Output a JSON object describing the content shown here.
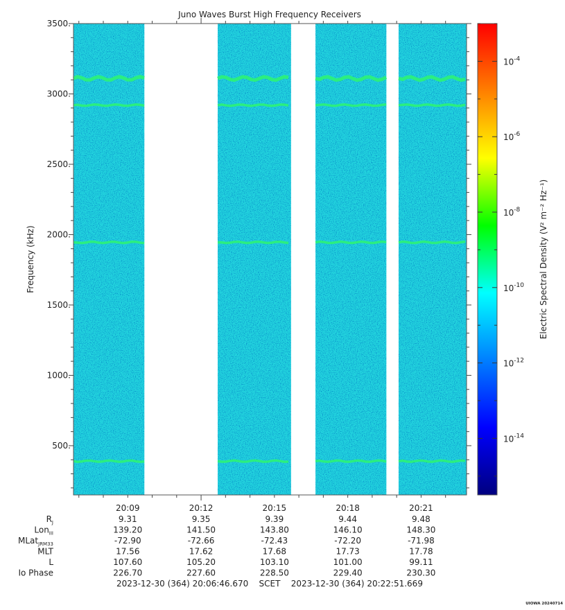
{
  "chart_data": {
    "type": "heatmap",
    "title": "Juno Waves Burst High Frequency Receivers",
    "ylabel": "Frequency (kHz)",
    "ylim": [
      150,
      3500
    ],
    "y_ticks": [
      {
        "value": 500,
        "label": "500."
      },
      {
        "value": 1000,
        "label": "1000."
      },
      {
        "value": 1500,
        "label": "1500."
      },
      {
        "value": 2000,
        "label": "2000."
      },
      {
        "value": 2500,
        "label": "2500."
      },
      {
        "value": 3000,
        "label": "3000."
      },
      {
        "value": 3500,
        "label": "3500."
      }
    ],
    "x_range_minutes": [
      0,
      16.08
    ],
    "x_ticks": [
      {
        "minutes": 2.22,
        "label": "20:09"
      },
      {
        "minutes": 5.22,
        "label": "20:12"
      },
      {
        "minutes": 8.22,
        "label": "20:15"
      },
      {
        "minutes": 11.22,
        "label": "20:18"
      },
      {
        "minutes": 14.22,
        "label": "20:21"
      }
    ],
    "data_segments_minutes": [
      [
        0,
        2.9
      ],
      [
        5.9,
        8.9
      ],
      [
        9.9,
        12.8
      ],
      [
        13.3,
        16.08
      ]
    ],
    "emission_lines_khz": [
      3110,
      2920,
      1945,
      390
    ],
    "colorbar": {
      "label": "Electric Spectral Density (V² m⁻² Hz⁻¹)",
      "log_min": -15.5,
      "log_max": -3,
      "ticks": [
        {
          "exp": -4,
          "base": "10",
          "sup": "-4"
        },
        {
          "exp": -6,
          "base": "10",
          "sup": "-6"
        },
        {
          "exp": -8,
          "base": "10",
          "sup": "-8"
        },
        {
          "exp": -10,
          "base": "10",
          "sup": "-10"
        },
        {
          "exp": -12,
          "base": "10",
          "sup": "-12"
        },
        {
          "exp": -14,
          "base": "10",
          "sup": "-14"
        }
      ],
      "colors": [
        "#00007f",
        "#0000ff",
        "#007fff",
        "#00ffff",
        "#00ff00",
        "#ffff00",
        "#ff7f00",
        "#ff0000"
      ]
    },
    "ephemeris": {
      "rows": [
        {
          "label": "R",
          "sub": "J",
          "values": [
            "9.31",
            "9.35",
            "9.39",
            "9.44",
            "9.48"
          ]
        },
        {
          "label": "Lon",
          "sub": "III",
          "values": [
            "139.20",
            "141.50",
            "143.80",
            "146.10",
            "148.30"
          ]
        },
        {
          "label": "MLat",
          "sub": "JRM33",
          "values": [
            "-72.90",
            "-72.66",
            "-72.43",
            "-72.20",
            "-71.98"
          ]
        },
        {
          "label": "MLT",
          "sub": "",
          "values": [
            "17.56",
            "17.62",
            "17.68",
            "17.73",
            "17.78"
          ]
        },
        {
          "label": "L",
          "sub": "",
          "values": [
            "107.60",
            "105.20",
            "103.10",
            "101.00",
            "99.11"
          ]
        },
        {
          "label": "Io Phase",
          "sub": "",
          "values": [
            "226.70",
            "227.60",
            "228.50",
            "229.40",
            "230.30"
          ]
        }
      ]
    },
    "time_span": "2023-12-30 (364) 20:06:46.670    SCET    2023-12-30 (364) 20:22:51.669",
    "stamp": "UIOWA 20240714"
  }
}
